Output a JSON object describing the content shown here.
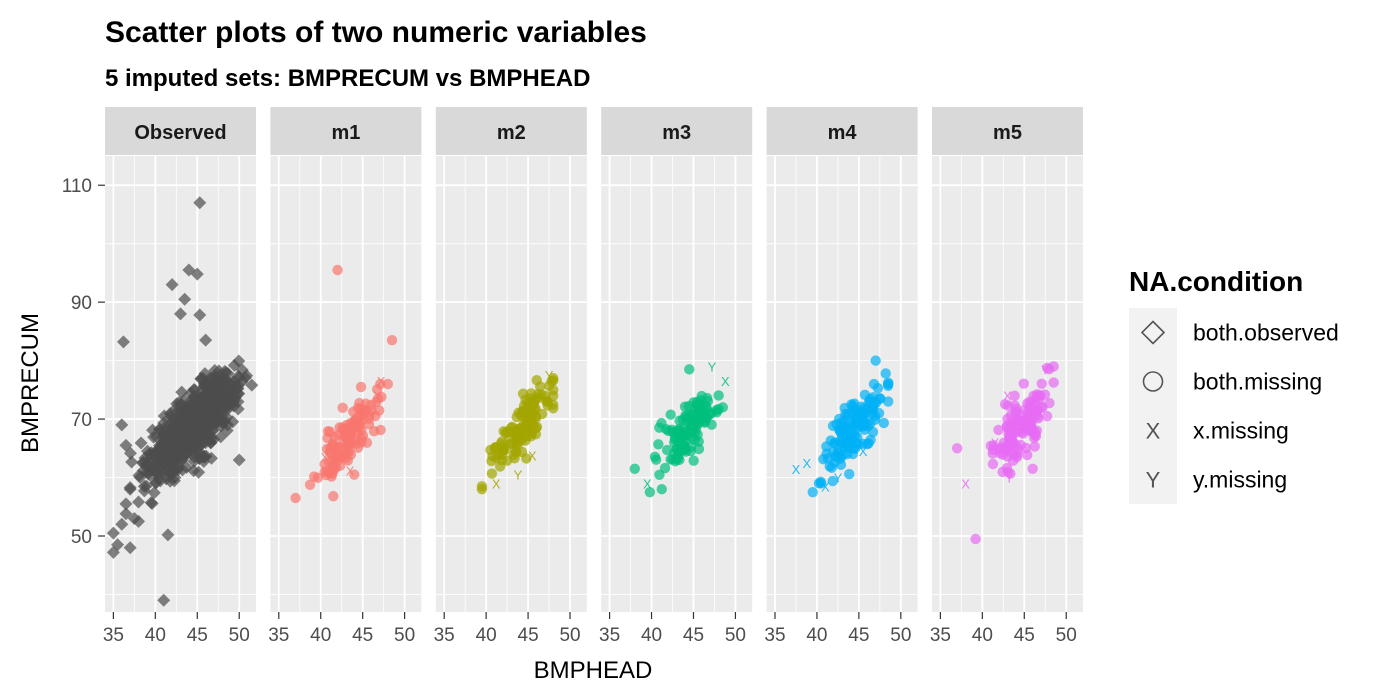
{
  "chart_data": {
    "type": "scatter",
    "title": "Scatter plots of two numeric variables",
    "subtitle": "5  imputed sets:  BMPRECUM vs BMPHEAD",
    "xlabel": "BMPHEAD",
    "ylabel": "BMPRECUM",
    "xlim": [
      34,
      52
    ],
    "ylim": [
      37,
      115
    ],
    "x_ticks": [
      35,
      40,
      45,
      50
    ],
    "y_ticks": [
      50,
      70,
      90,
      110
    ],
    "grid": true,
    "legend_position": "right",
    "legend": {
      "title": "NA.condition",
      "entries": [
        {
          "label": "both.observed",
          "shape": "diamond-open"
        },
        {
          "label": "both.missing",
          "shape": "circle-open"
        },
        {
          "label": "x.missing",
          "shape": "X"
        },
        {
          "label": "y.missing",
          "shape": "Y"
        }
      ]
    },
    "panels": [
      {
        "name": "Observed",
        "color": "#4D4D4D",
        "shape": "diamond",
        "main": {
          "count": 900,
          "center": [
            44.5,
            69
          ],
          "sd": [
            2.5,
            4
          ],
          "corr": 0.75,
          "xlim": [
            37,
            51
          ],
          "ylim": [
            53,
            82
          ]
        },
        "extra": [
          [
            45.3,
            107
          ],
          [
            44,
            95.5
          ],
          [
            45,
            94.8
          ],
          [
            42,
            93
          ],
          [
            43.5,
            90.5
          ],
          [
            45.3,
            87.8
          ],
          [
            43,
            88
          ],
          [
            36.2,
            83.2
          ],
          [
            46,
            83.5
          ],
          [
            36,
            69
          ],
          [
            36.5,
            65.5
          ],
          [
            50,
            63
          ],
          [
            51.5,
            75.8
          ],
          [
            41.5,
            50.2
          ],
          [
            41,
            39
          ],
          [
            35,
            47.2
          ],
          [
            35.5,
            48.5
          ],
          [
            37,
            48
          ],
          [
            35,
            50.5
          ],
          [
            36,
            52
          ],
          [
            36.5,
            53.8
          ],
          [
            37.5,
            53
          ],
          [
            38,
            52.5
          ],
          [
            36.5,
            55.5
          ],
          [
            37,
            58
          ]
        ],
        "missing": []
      },
      {
        "name": "m1",
        "color": "#F8766D",
        "shape": "circle",
        "main": {
          "count": 120,
          "center": [
            43.5,
            67
          ],
          "sd": [
            2,
            4
          ],
          "corr": 0.8,
          "xlim": [
            38,
            48
          ],
          "ylim": [
            56,
            76
          ]
        },
        "extra": [
          [
            42,
            95.5
          ],
          [
            48.5,
            83.5
          ],
          [
            37,
            56.5
          ],
          [
            41.5,
            56.8
          ],
          [
            44,
            60.5
          ]
        ],
        "missing": [
          {
            "s": "X",
            "x": 47.2,
            "y": 76.5
          },
          {
            "s": "X",
            "x": 44.2,
            "y": 68.5
          },
          {
            "s": "X",
            "x": 43.5,
            "y": 61.2
          },
          {
            "s": "X",
            "x": 40.5,
            "y": 63.5
          },
          {
            "s": "Y",
            "x": 46.8,
            "y": 74
          }
        ]
      },
      {
        "name": "m2",
        "color": "#A3A500",
        "shape": "circle",
        "main": {
          "count": 120,
          "center": [
            44,
            68
          ],
          "sd": [
            1.8,
            3.5
          ],
          "corr": 0.8,
          "xlim": [
            39.5,
            48
          ],
          "ylim": [
            58,
            77
          ]
        },
        "extra": [
          [
            47.8,
            76.5
          ],
          [
            39.5,
            58.5
          ]
        ],
        "missing": [
          {
            "s": "Y",
            "x": 47.5,
            "y": 77.5
          },
          {
            "s": "Y",
            "x": 43.8,
            "y": 60.5
          },
          {
            "s": "X",
            "x": 41.2,
            "y": 59
          },
          {
            "s": "X",
            "x": 45.5,
            "y": 63.8
          },
          {
            "s": "Y",
            "x": 44,
            "y": 67
          }
        ]
      },
      {
        "name": "m3",
        "color": "#00BF7D",
        "shape": "circle",
        "main": {
          "count": 120,
          "center": [
            44.5,
            68
          ],
          "sd": [
            1.8,
            3.5
          ],
          "corr": 0.75,
          "xlim": [
            39.5,
            48
          ],
          "ylim": [
            58,
            78
          ]
        },
        "extra": [
          [
            44.5,
            78.5
          ],
          [
            48.5,
            72
          ],
          [
            38,
            61.5
          ],
          [
            39.8,
            57.5
          ]
        ],
        "missing": [
          {
            "s": "Y",
            "x": 47.2,
            "y": 79
          },
          {
            "s": "X",
            "x": 48.8,
            "y": 76.5
          },
          {
            "s": "X",
            "x": 39.5,
            "y": 59
          },
          {
            "s": "X",
            "x": 44.5,
            "y": 66.5
          },
          {
            "s": "Y",
            "x": 43,
            "y": 63
          }
        ]
      },
      {
        "name": "m4",
        "color": "#00B0F6",
        "shape": "circle",
        "main": {
          "count": 130,
          "center": [
            44.5,
            68.5
          ],
          "sd": [
            1.9,
            4
          ],
          "corr": 0.75,
          "xlim": [
            39,
            48.5
          ],
          "ylim": [
            57,
            80
          ]
        },
        "extra": [
          [
            47,
            80
          ],
          [
            48.2,
            77.8
          ],
          [
            39.5,
            57.5
          ],
          [
            40.5,
            59
          ]
        ],
        "missing": [
          {
            "s": "X",
            "x": 37.5,
            "y": 61.5
          },
          {
            "s": "X",
            "x": 38.8,
            "y": 62.5
          },
          {
            "s": "X",
            "x": 41,
            "y": 58.5
          },
          {
            "s": "X",
            "x": 45.5,
            "y": 64.5
          },
          {
            "s": "Y",
            "x": 42.5,
            "y": 60
          }
        ]
      },
      {
        "name": "m5",
        "color": "#E76BF3",
        "shape": "circle",
        "main": {
          "count": 125,
          "center": [
            44.5,
            68.5
          ],
          "sd": [
            1.9,
            4
          ],
          "corr": 0.75,
          "xlim": [
            39,
            48.5
          ],
          "ylim": [
            58,
            79
          ]
        },
        "extra": [
          [
            37,
            65
          ],
          [
            39.2,
            49.5
          ],
          [
            46,
            61.5
          ]
        ],
        "missing": [
          {
            "s": "X",
            "x": 38,
            "y": 59
          },
          {
            "s": "X",
            "x": 43,
            "y": 74
          },
          {
            "s": "Y",
            "x": 47.5,
            "y": 78.5
          },
          {
            "s": "Y",
            "x": 43.2,
            "y": 60
          },
          {
            "s": "X",
            "x": 41.5,
            "y": 66
          }
        ]
      }
    ]
  }
}
